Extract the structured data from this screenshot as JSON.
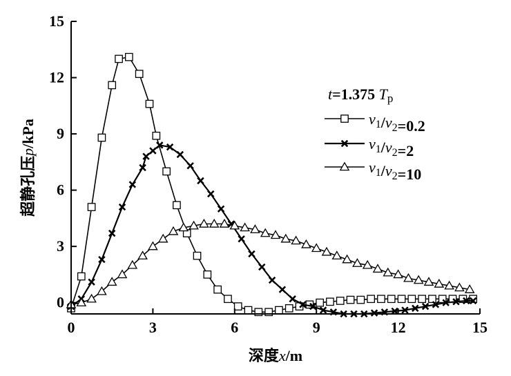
{
  "chart_data": {
    "type": "line",
    "xlabel": "深度x/m",
    "ylabel": "超静孔压p/kPa",
    "xlim": [
      0,
      15
    ],
    "ylim": [
      -0.6,
      15
    ],
    "xticks": [
      "0",
      "3",
      "6",
      "9",
      "12",
      "15"
    ],
    "yticks": [
      "0",
      "3",
      "6",
      "9",
      "12",
      "15"
    ],
    "grid": false,
    "legend_position": "right",
    "legend_title": "t=1.375 Tp",
    "series": [
      {
        "name": "v1/v2=0.2",
        "marker": "square",
        "x": [
          0,
          0.375,
          0.75,
          1.125,
          1.5,
          1.75,
          2.125,
          2.5,
          2.875,
          3.125,
          3.5,
          3.875,
          4.25,
          4.625,
          5,
          5.375,
          5.75,
          6.125,
          6.5,
          6.875,
          7.25,
          7.625,
          8,
          8.375,
          8.75,
          9.125,
          9.5,
          9.875,
          10.25,
          10.625,
          11,
          11.375,
          11.75,
          12.125,
          12.5,
          12.875,
          13.25,
          13.625,
          14,
          14.375,
          14.75
        ],
        "values": [
          -0.3,
          1.4,
          5.1,
          8.8,
          11.6,
          13.0,
          13.1,
          12.2,
          10.6,
          8.9,
          7.0,
          5.2,
          3.7,
          2.5,
          1.5,
          0.7,
          0.2,
          -0.2,
          -0.4,
          -0.5,
          -0.5,
          -0.4,
          -0.3,
          -0.2,
          -0.1,
          0.0,
          0.05,
          0.1,
          0.15,
          0.15,
          0.2,
          0.2,
          0.2,
          0.2,
          0.2,
          0.2,
          0.2,
          0.2,
          0.2,
          0.2,
          0.2
        ]
      },
      {
        "name": "v1/v2=2",
        "marker": "x",
        "x": [
          0,
          0.375,
          0.75,
          1.125,
          1.5,
          1.875,
          2.25,
          2.625,
          2.75,
          3.0,
          3.25,
          3.625,
          4.0,
          4.375,
          4.75,
          5.125,
          5.5,
          5.875,
          6.25,
          6.625,
          7.0,
          7.375,
          7.75,
          8.125,
          8.5,
          8.875,
          9.25,
          9.625,
          10.0,
          10.375,
          10.75,
          11.125,
          11.5,
          11.875,
          12.25,
          12.625,
          13.0,
          13.375,
          13.75,
          14.125,
          14.5,
          14.75
        ],
        "values": [
          -0.2,
          0.2,
          1.1,
          2.3,
          3.7,
          5.1,
          6.3,
          7.2,
          7.8,
          8.1,
          8.4,
          8.3,
          7.9,
          7.3,
          6.5,
          5.8,
          5.0,
          4.2,
          3.4,
          2.6,
          1.9,
          1.2,
          0.7,
          0.2,
          -0.1,
          -0.2,
          -0.4,
          -0.5,
          -0.6,
          -0.6,
          -0.6,
          -0.55,
          -0.5,
          -0.45,
          -0.4,
          -0.3,
          -0.2,
          -0.1,
          0.0,
          0.05,
          0.1,
          0.1
        ]
      },
      {
        "name": "v1/v2=10",
        "marker": "triangle",
        "x": [
          0,
          0.375,
          0.75,
          1.125,
          1.5,
          1.875,
          2.25,
          2.625,
          3.0,
          3.375,
          3.75,
          4.125,
          4.5,
          4.875,
          5.25,
          5.625,
          6.0,
          6.375,
          6.75,
          7.125,
          7.5,
          7.875,
          8.25,
          8.625,
          9.0,
          9.375,
          9.75,
          10.125,
          10.5,
          10.875,
          11.25,
          11.625,
          12.0,
          12.375,
          12.75,
          13.125,
          13.5,
          13.875,
          14.25,
          14.625
        ],
        "values": [
          -0.1,
          0.0,
          0.2,
          0.6,
          1.1,
          1.5,
          2.0,
          2.5,
          3.0,
          3.4,
          3.8,
          4.0,
          4.1,
          4.2,
          4.2,
          4.2,
          4.1,
          4.0,
          3.9,
          3.7,
          3.6,
          3.4,
          3.3,
          3.1,
          2.9,
          2.7,
          2.5,
          2.3,
          2.1,
          2.0,
          1.8,
          1.6,
          1.5,
          1.3,
          1.2,
          1.1,
          1.0,
          0.9,
          0.8,
          0.7
        ]
      }
    ]
  }
}
